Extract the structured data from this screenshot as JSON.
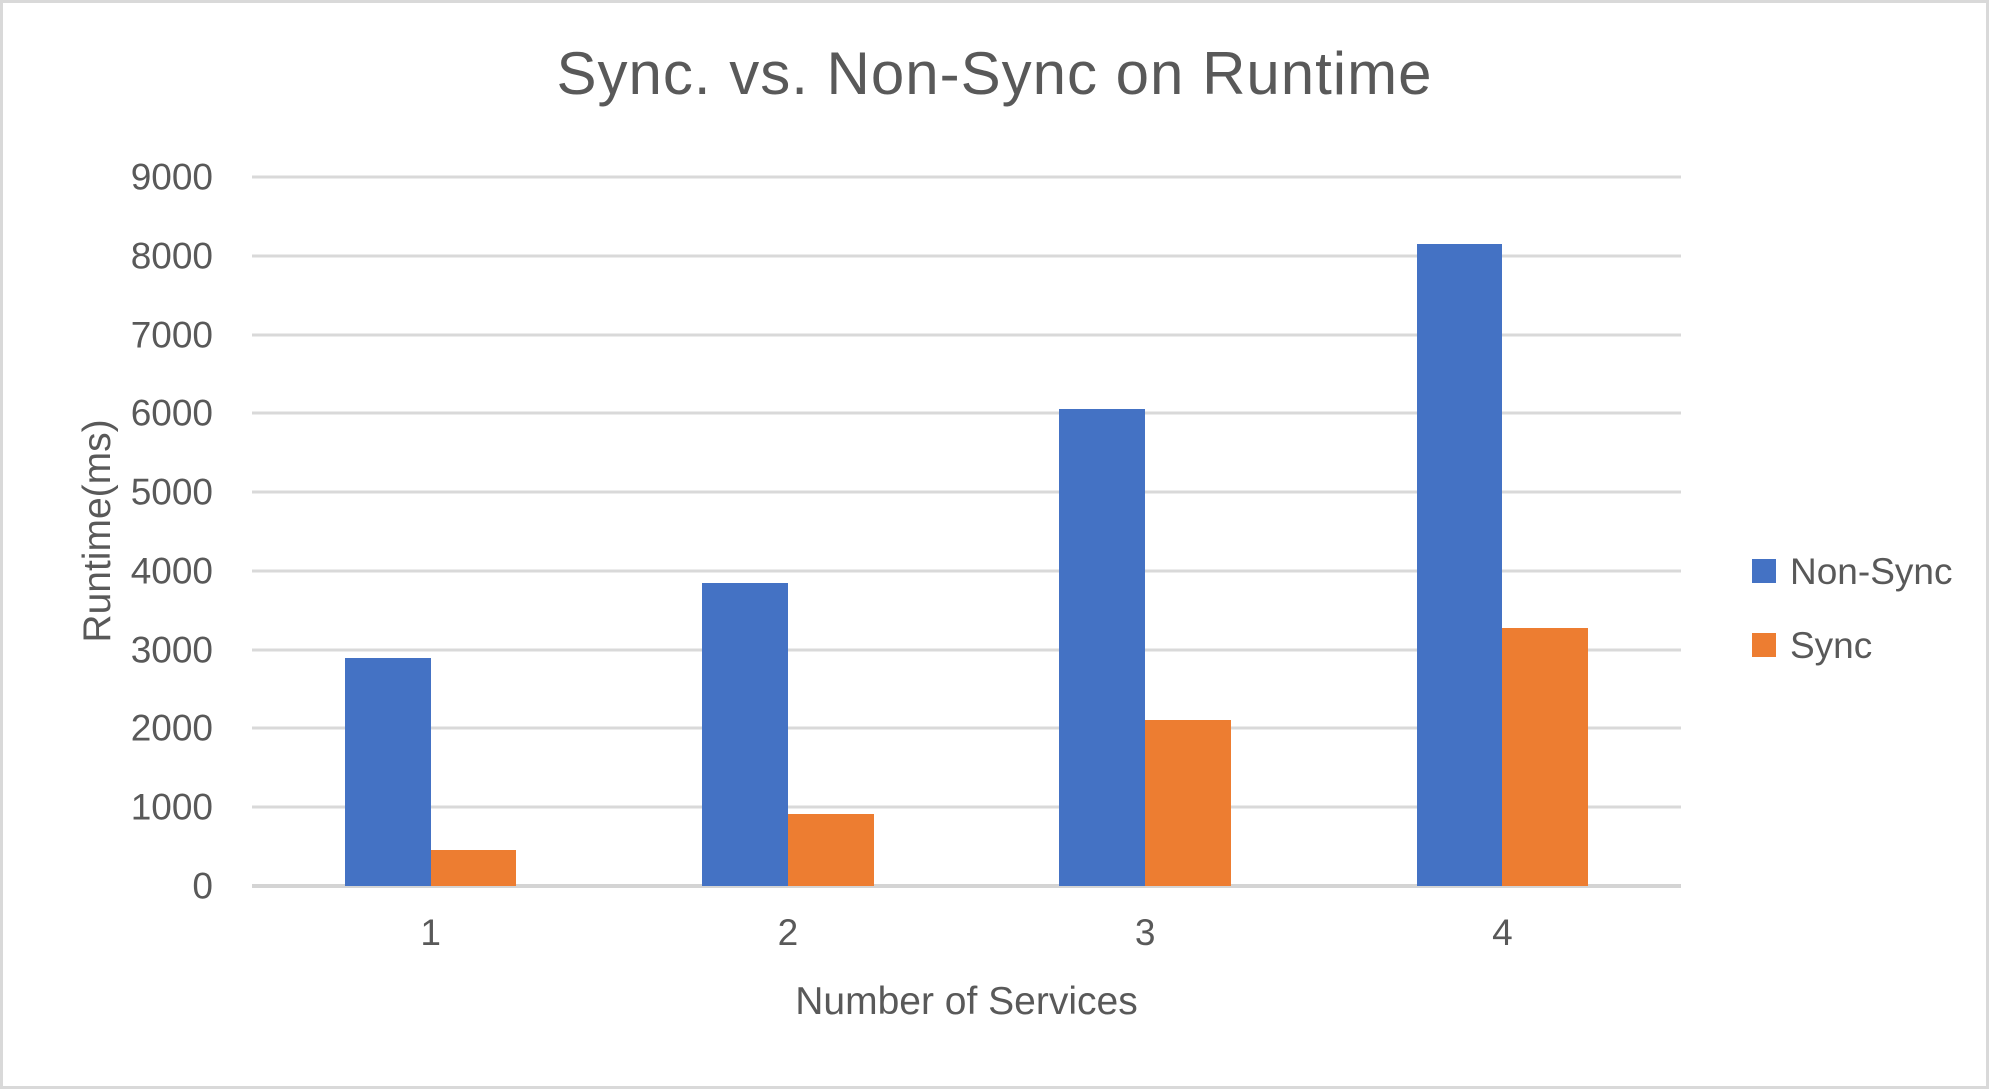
{
  "chart_data": {
    "type": "bar",
    "title": "Sync. vs. Non-Sync on Runtime",
    "xlabel": "Number of Services",
    "ylabel": "Runtime(ms)",
    "categories": [
      "1",
      "2",
      "3",
      "4"
    ],
    "series": [
      {
        "name": "Non-Sync",
        "color": "#4472C4",
        "values": [
          2900,
          3850,
          6050,
          8150
        ]
      },
      {
        "name": "Sync",
        "color": "#ED7D31",
        "values": [
          460,
          920,
          2110,
          3270
        ]
      }
    ],
    "ylim": [
      0,
      9000
    ],
    "ytick_step": 1000,
    "yticks": [
      9000,
      8000,
      7000,
      6000,
      5000,
      4000,
      3000,
      2000,
      1000,
      0
    ],
    "grid": true,
    "legend_position": "right"
  },
  "colors": {
    "text": "#595959",
    "gridline": "#D9D9D9",
    "border": "#D9D9D9",
    "background": "#FFFFFF",
    "non_sync": "#4472C4",
    "sync": "#ED7D31"
  }
}
